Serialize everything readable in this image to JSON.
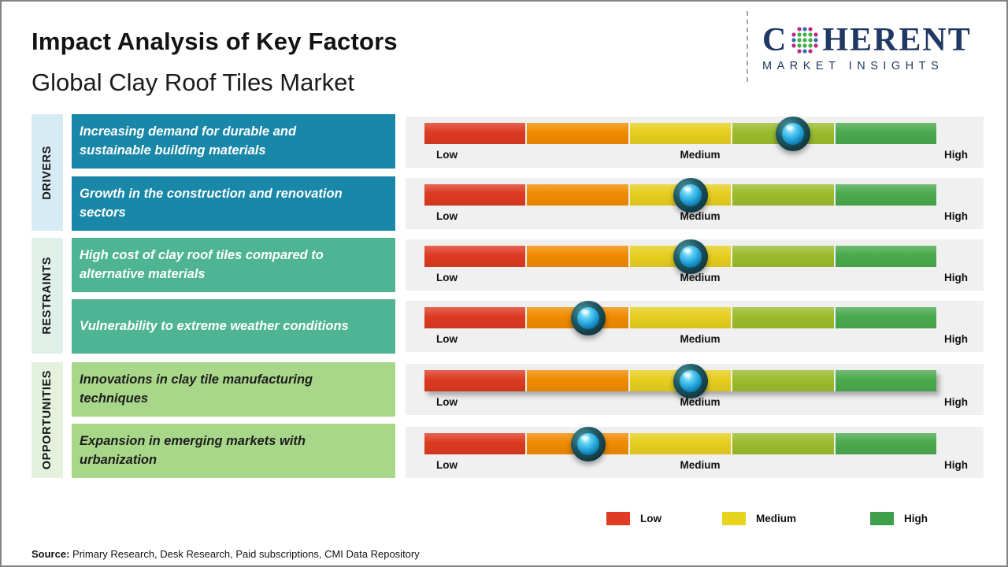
{
  "header": {
    "title": "Impact Analysis of Key Factors",
    "subtitle": "Global Clay Roof Tiles Market",
    "logo": {
      "wordmark_start": "C",
      "wordmark_end": "HERENT",
      "tagline": "MARKET INSIGHTS",
      "navy": "#1f3864",
      "globe_dot_colors": {
        "inner": "#3faf49",
        "outer_a": "#2e6fb2",
        "outer_b": "#c02882"
      }
    }
  },
  "chart_data": {
    "type": "bar",
    "subtype": "horizontal-impact-scale",
    "title": "Impact Analysis of Key Factors",
    "subtitle": "Global Clay Roof Tiles Market",
    "axis_labels": [
      "Low",
      "Medium",
      "High"
    ],
    "axis_range": [
      0,
      1
    ],
    "scale_segments": [
      "#dc3a21",
      "#f08b00",
      "#e6ce1e",
      "#9bbb2d",
      "#4aa94d"
    ],
    "panel_bg": "#f0f0f0",
    "groups": [
      {
        "name": "DRIVERS",
        "strip_color": "#d7ebf4",
        "box_color": "#1987a8",
        "text_color": "#ffffff",
        "factors": [
          {
            "label": "Increasing demand for durable and sustainable building materials",
            "impact": "Medium-High",
            "position": 0.72
          },
          {
            "label": "Growth in the construction and renovation sectors",
            "impact": "Medium",
            "position": 0.52
          }
        ]
      },
      {
        "name": "RESTRAINTS",
        "strip_color": "#dff0e9",
        "box_color": "#4eb493",
        "text_color": "#ffffff",
        "factors": [
          {
            "label": "High cost of clay roof tiles compared to alternative materials",
            "impact": "Medium",
            "position": 0.52
          },
          {
            "label": "Vulnerability to extreme weather conditions",
            "impact": "Low-Medium",
            "position": 0.32
          }
        ]
      },
      {
        "name": "OPPORTUNITIES",
        "strip_color": "#e3f1dd",
        "box_color": "#a9d789",
        "text_color": "#1d1d1d",
        "factors": [
          {
            "label": "Innovations in clay tile manufacturing techniques",
            "impact": "Medium",
            "position": 0.52
          },
          {
            "label": "Expansion in emerging markets with urbanization",
            "impact": "Low-Medium",
            "position": 0.32
          }
        ]
      }
    ],
    "legend": [
      {
        "label": "Low",
        "color": "#e23b23"
      },
      {
        "label": "Medium",
        "color": "#e8d41f"
      },
      {
        "label": "High",
        "color": "#3ea149"
      }
    ],
    "legend_position": "bottom-right"
  },
  "footer": {
    "source_label": "Source:",
    "source_text": "Primary Research, Desk Research, Paid subscriptions, CMI Data Repository"
  }
}
